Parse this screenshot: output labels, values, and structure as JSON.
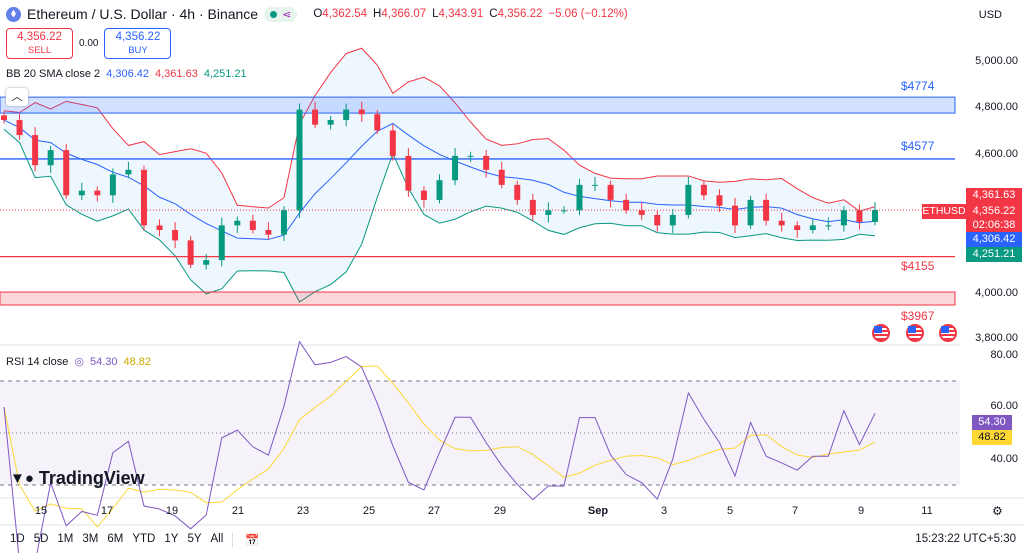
{
  "header": {
    "title": "Ethereum / U.S. Dollar · 4h · Binance",
    "open": "4,362.54",
    "high": "4,366.07",
    "low": "4,343.91",
    "close": "4,356.22",
    "change": "−5.06 (−0.12%)",
    "o_label": "O",
    "h_label": "H",
    "l_label": "L",
    "c_label": "C"
  },
  "trade": {
    "sell_price": "4,356.22",
    "sell_label": "SELL",
    "spread": "0.00",
    "buy_price": "4,356.22",
    "buy_label": "BUY"
  },
  "bb": {
    "label": "BB 20 SMA close 2",
    "basis": "4,306.42",
    "upper": "4,361.63",
    "lower": "4,251.21"
  },
  "rsi": {
    "label": "RSI 14 close",
    "value": "54.30",
    "ma": "48.82"
  },
  "currency": "USD",
  "price_axis": [
    "5,000.00",
    "4,800.00",
    "4,600.00",
    "4,000.00",
    "3,800.00"
  ],
  "rsi_axis": [
    "80.00",
    "60.00",
    "40.00"
  ],
  "tags": {
    "upper": "4,361.63",
    "symbol": "ETHUSD",
    "last": "4,356.22",
    "countdown": "02:06:38",
    "basis": "4,306.42",
    "lower": "4,251.21"
  },
  "levels": [
    {
      "label": "$4774"
    },
    {
      "label": "$4577"
    },
    {
      "label": "$4155"
    },
    {
      "label": "$3967"
    }
  ],
  "dates": [
    "15",
    "17",
    "19",
    "21",
    "23",
    "25",
    "27",
    "29",
    "Sep",
    "3",
    "5",
    "7",
    "9",
    "11"
  ],
  "ranges": [
    "1D",
    "5D",
    "1M",
    "3M",
    "6M",
    "YTD",
    "1Y",
    "5Y",
    "All"
  ],
  "clock": "15:23:22 UTC+5:30",
  "brand": "TradingView",
  "colors": {
    "up": "#089981",
    "down": "#f23645",
    "bb_upper": "#f23645",
    "bb_basis": "#2962ff",
    "bb_lower": "#089981",
    "rsi": "#7e57c2",
    "rsi_ma": "#fdd835"
  },
  "chart_data": {
    "type": "candlestick",
    "price_range": [
      3780,
      5080
    ],
    "closes": [
      4745,
      4680,
      4550,
      4615,
      4420,
      4440,
      4420,
      4510,
      4530,
      4290,
      4270,
      4225,
      4120,
      4140,
      4290,
      4310,
      4270,
      4250,
      4355,
      4790,
      4725,
      4745,
      4790,
      4770,
      4700,
      4590,
      4440,
      4400,
      4485,
      4590,
      4590,
      4530,
      4465,
      4400,
      4335,
      4355,
      4355,
      4465,
      4465,
      4400,
      4355,
      4335,
      4290,
      4335,
      4465,
      4420,
      4375,
      4290,
      4400,
      4310,
      4290,
      4270,
      4290,
      4290,
      4355,
      4305,
      4356
    ],
    "zones": [
      {
        "from": 4775,
        "to": 4844,
        "color": "#2962ff"
      },
      {
        "from": 3946,
        "to": 4002,
        "color": "#f23645"
      }
    ],
    "lines": [
      {
        "price": 4577,
        "color": "#2962ff"
      },
      {
        "price": 4155,
        "color": "#f23645"
      }
    ],
    "rsi_bands": [
      70,
      30
    ]
  }
}
